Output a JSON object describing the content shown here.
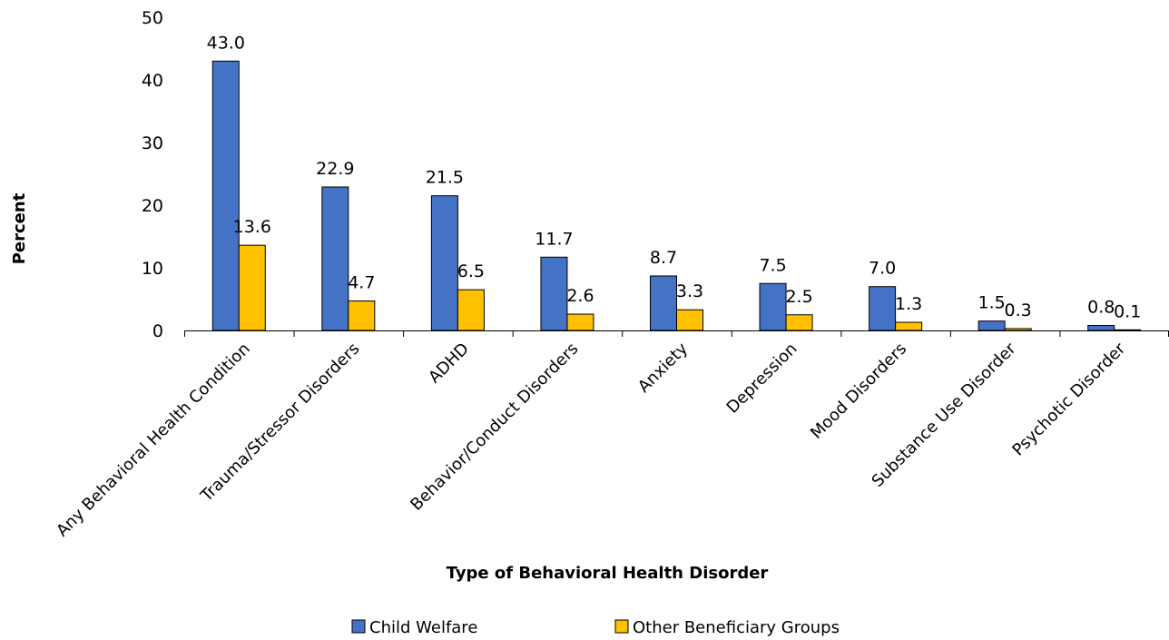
{
  "chart_data": {
    "type": "bar",
    "title": "",
    "xlabel": "Type of Behavioral Health Disorder",
    "ylabel": "Percent",
    "ylim": [
      0,
      50
    ],
    "yticks": [
      0,
      10,
      20,
      30,
      40,
      50
    ],
    "grid": false,
    "legend_position": "bottom",
    "categories": [
      "Any Behavioral Health Condition",
      "Trauma/Stressor Disorders",
      "ADHD",
      "Behavior/Conduct Disorders",
      "Anxiety",
      "Depression",
      "Mood Disorders",
      "Substance Use Disorder",
      "Psychotic Disorder"
    ],
    "series": [
      {
        "name": "Child Welfare",
        "color": "#4472C4",
        "values": [
          43.0,
          22.9,
          21.5,
          11.7,
          8.7,
          7.5,
          7.0,
          1.5,
          0.8
        ],
        "labels": [
          "43.0",
          "22.9",
          "21.5",
          "11.7",
          "8.7",
          "7.5",
          "7.0",
          "1.5",
          "0.8"
        ]
      },
      {
        "name": "Other Beneficiary Groups",
        "color": "#FFC000",
        "values": [
          13.6,
          4.7,
          6.5,
          2.6,
          3.3,
          2.5,
          1.3,
          0.3,
          0.1
        ],
        "labels": [
          "13.6",
          "4.7",
          "6.5",
          "2.6",
          "3.3",
          "2.5",
          "1.3",
          "0.3",
          "0.1"
        ]
      }
    ]
  }
}
